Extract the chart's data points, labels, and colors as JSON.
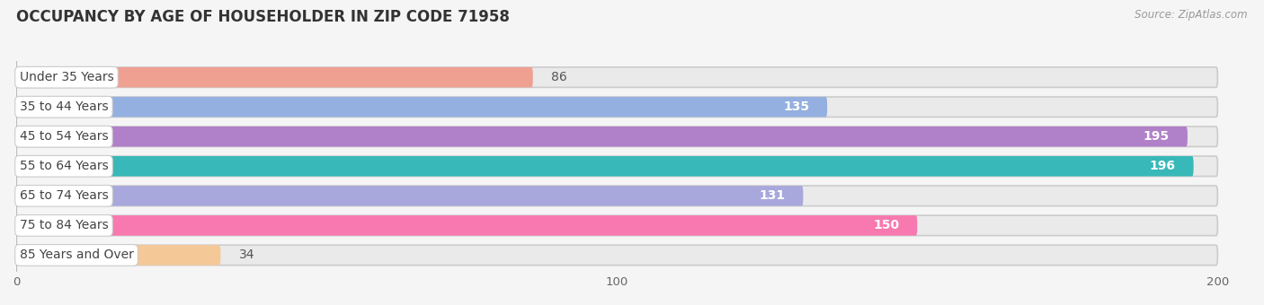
{
  "title": "OCCUPANCY BY AGE OF HOUSEHOLDER IN ZIP CODE 71958",
  "source": "Source: ZipAtlas.com",
  "categories": [
    "Under 35 Years",
    "35 to 44 Years",
    "45 to 54 Years",
    "55 to 64 Years",
    "65 to 74 Years",
    "75 to 84 Years",
    "85 Years and Over"
  ],
  "values": [
    86,
    135,
    195,
    196,
    131,
    150,
    34
  ],
  "bar_colors": [
    "#F0A090",
    "#94B0E0",
    "#B080C8",
    "#38B8B8",
    "#A8A8DC",
    "#F878B0",
    "#F5C898"
  ],
  "bar_bg_colors": [
    "#EDE0DE",
    "#DCDCEC",
    "#DDD0E4",
    "#CCEAEA",
    "#DCDCE8",
    "#F5D8E8",
    "#EDE8DC"
  ],
  "row_bg_color": "#EAEAEA",
  "xlim_data": 205,
  "data_max": 200,
  "xticks": [
    0,
    100,
    200
  ],
  "title_fontsize": 12,
  "label_fontsize": 10,
  "value_fontsize": 10,
  "bg_color": "#F5F5F5"
}
